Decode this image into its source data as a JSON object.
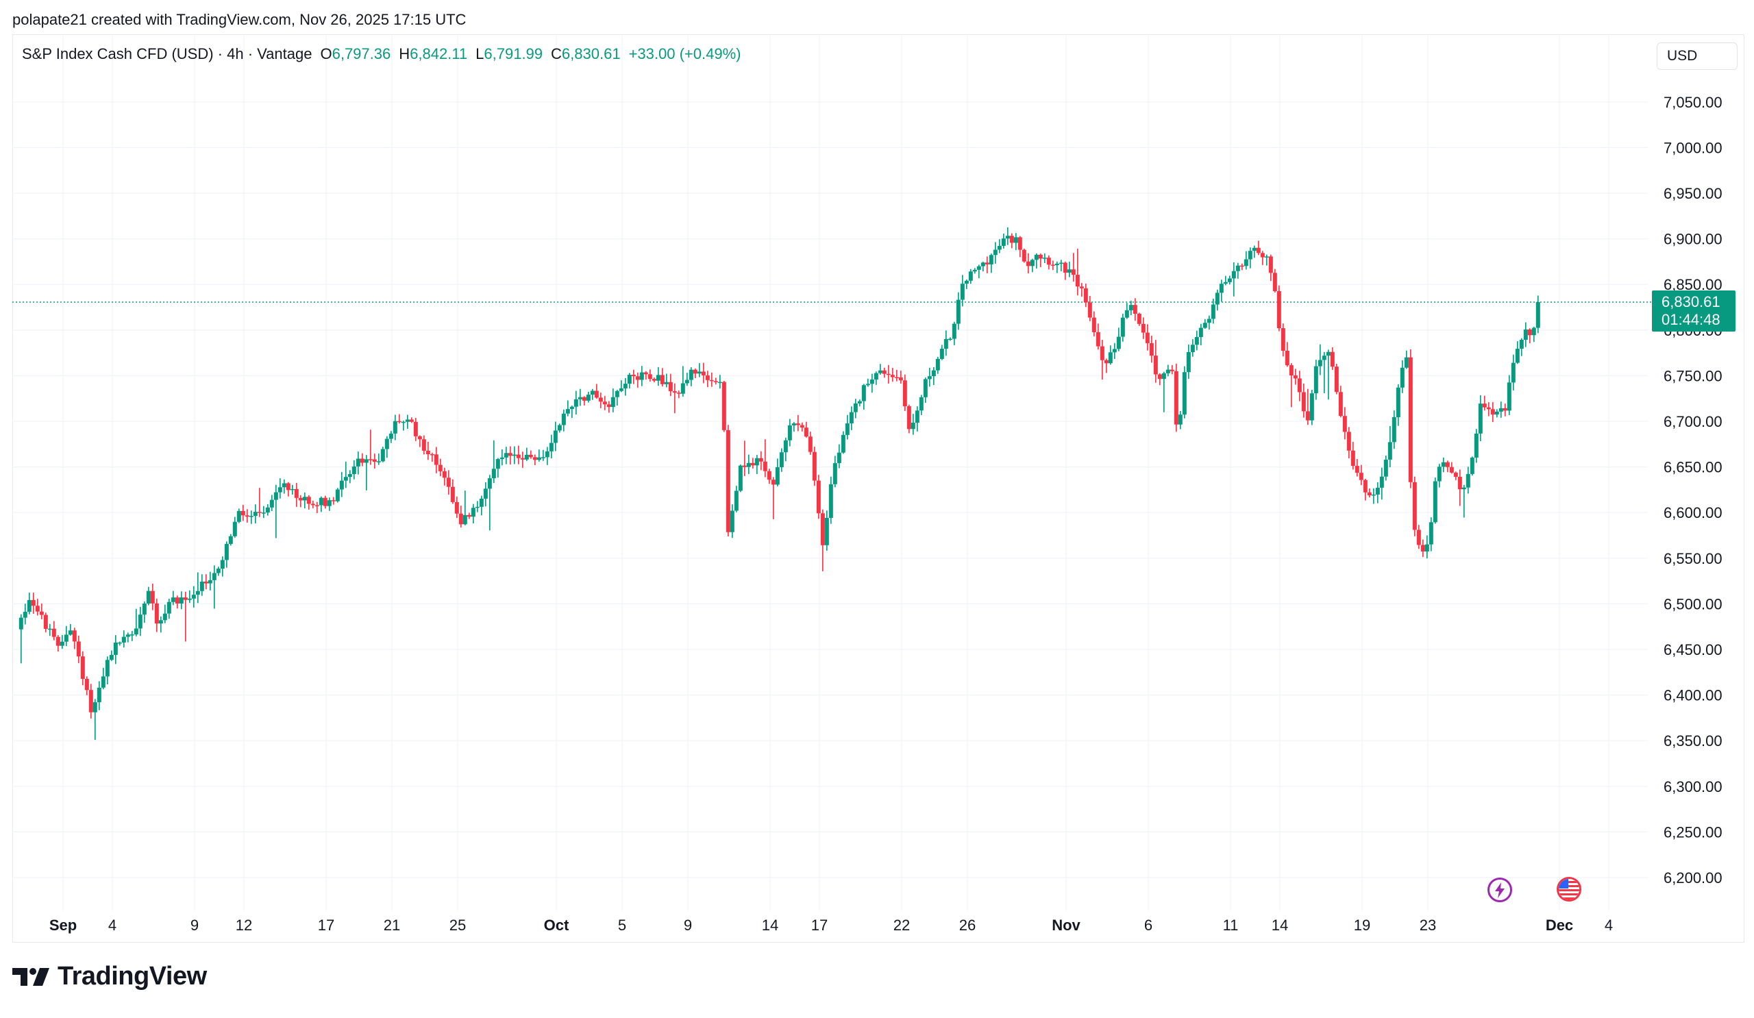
{
  "header": {
    "created_by": "polapate21 created with TradingView.com, Nov 26, 2025 17:15 UTC"
  },
  "legend": {
    "symbol": "S&P Index Cash CFD (USD) · 4h · Vantage",
    "open_label": "O",
    "open": "6,797.36",
    "high_label": "H",
    "high": "6,842.11",
    "low_label": "L",
    "low": "6,791.99",
    "close_label": "C",
    "close": "6,830.61",
    "change": "+33.00 (+0.49%)"
  },
  "currency_button": "USD",
  "price_tag": {
    "price": "6,830.61",
    "countdown": "01:44:48"
  },
  "logo": {
    "text": "TradingView",
    "icon": "tradingview-logo-icon"
  },
  "events": [
    {
      "icon": "lightning-icon",
      "color": "#9c27b0"
    },
    {
      "icon": "us-flag-icon",
      "color": "#f23645"
    }
  ],
  "colors": {
    "up": "#089981",
    "down": "#f23645",
    "grid": "#f0f3fa",
    "text": "#131722"
  },
  "chart_data": {
    "type": "candlestick",
    "title": "S&P Index Cash CFD (USD) · 4h · Vantage",
    "ylim": [
      6150,
      7090
    ],
    "y_ticks": [
      "6,200.00",
      "6,250.00",
      "6,300.00",
      "6,350.00",
      "6,400.00",
      "6,450.00",
      "6,500.00",
      "6,550.00",
      "6,600.00",
      "6,650.00",
      "6,700.00",
      "6,750.00",
      "6,800.00",
      "6,850.00",
      "6,900.00",
      "6,950.00",
      "7,000.00",
      "7,050.00"
    ],
    "y_tick_values": [
      6200,
      6250,
      6300,
      6350,
      6400,
      6450,
      6500,
      6550,
      6600,
      6650,
      6700,
      6750,
      6800,
      6850,
      6900,
      6950,
      7000,
      7050
    ],
    "x_ticks": [
      {
        "label": "Sep",
        "day": 0,
        "bold": true
      },
      {
        "label": "4",
        "day": 3,
        "bold": false
      },
      {
        "label": "9",
        "day": 8,
        "bold": false
      },
      {
        "label": "12",
        "day": 11,
        "bold": false
      },
      {
        "label": "17",
        "day": 16,
        "bold": false
      },
      {
        "label": "21",
        "day": 20,
        "bold": false
      },
      {
        "label": "25",
        "day": 24,
        "bold": false
      },
      {
        "label": "Oct",
        "day": 30,
        "bold": true
      },
      {
        "label": "5",
        "day": 34,
        "bold": false
      },
      {
        "label": "9",
        "day": 38,
        "bold": false
      },
      {
        "label": "14",
        "day": 43,
        "bold": false
      },
      {
        "label": "17",
        "day": 46,
        "bold": false
      },
      {
        "label": "22",
        "day": 51,
        "bold": false
      },
      {
        "label": "26",
        "day": 55,
        "bold": false
      },
      {
        "label": "Nov",
        "day": 61,
        "bold": true
      },
      {
        "label": "6",
        "day": 66,
        "bold": false
      },
      {
        "label": "11",
        "day": 71,
        "bold": false
      },
      {
        "label": "14",
        "day": 74,
        "bold": false
      },
      {
        "label": "19",
        "day": 79,
        "bold": false
      },
      {
        "label": "23",
        "day": 83,
        "bold": false
      },
      {
        "label": "Dec",
        "day": 91,
        "bold": true
      },
      {
        "label": "4",
        "day": 94,
        "bold": false
      }
    ],
    "current_price": 6830.61,
    "path": [
      [
        -2.8,
        6472
      ],
      [
        -2.0,
        6508
      ],
      [
        -1.5,
        6490
      ],
      [
        -0.8,
        6468
      ],
      [
        -0.3,
        6452
      ],
      [
        0.5,
        6476
      ],
      [
        1.3,
        6410
      ],
      [
        1.8,
        6380
      ],
      [
        2.5,
        6428
      ],
      [
        3.3,
        6458
      ],
      [
        4.3,
        6468
      ],
      [
        5.3,
        6518
      ],
      [
        5.8,
        6472
      ],
      [
        6.6,
        6505
      ],
      [
        7.6,
        6505
      ],
      [
        8.6,
        6522
      ],
      [
        9.6,
        6545
      ],
      [
        10.6,
        6598
      ],
      [
        11.6,
        6595
      ],
      [
        12.4,
        6602
      ],
      [
        13.4,
        6630
      ],
      [
        14.3,
        6615
      ],
      [
        15.3,
        6612
      ],
      [
        16.3,
        6612
      ],
      [
        17.1,
        6640
      ],
      [
        18.1,
        6658
      ],
      [
        19.3,
        6660
      ],
      [
        20.3,
        6702
      ],
      [
        21.1,
        6698
      ],
      [
        22.1,
        6668
      ],
      [
        23.1,
        6645
      ],
      [
        24.2,
        6590
      ],
      [
        25.2,
        6605
      ],
      [
        26.1,
        6650
      ],
      [
        27.3,
        6665
      ],
      [
        28.3,
        6660
      ],
      [
        29.2,
        6658
      ],
      [
        30.2,
        6700
      ],
      [
        31.2,
        6725
      ],
      [
        32.2,
        6730
      ],
      [
        33.2,
        6718
      ],
      [
        34.1,
        6745
      ],
      [
        35.3,
        6752
      ],
      [
        36.3,
        6748
      ],
      [
        37.3,
        6728
      ],
      [
        38.3,
        6758
      ],
      [
        39.3,
        6742
      ],
      [
        40.1,
        6748
      ],
      [
        40.4,
        6578
      ],
      [
        41.2,
        6648
      ],
      [
        42.3,
        6660
      ],
      [
        43.2,
        6628
      ],
      [
        44.1,
        6695
      ],
      [
        45.1,
        6698
      ],
      [
        45.6,
        6648
      ],
      [
        46.2,
        6560
      ],
      [
        46.8,
        6645
      ],
      [
        47.8,
        6700
      ],
      [
        49.0,
        6748
      ],
      [
        50.0,
        6755
      ],
      [
        51.0,
        6745
      ],
      [
        51.5,
        6685
      ],
      [
        52.5,
        6745
      ],
      [
        53.5,
        6778
      ],
      [
        54.3,
        6808
      ],
      [
        54.6,
        6850
      ],
      [
        55.5,
        6865
      ],
      [
        56.5,
        6882
      ],
      [
        57.3,
        6900
      ],
      [
        58.1,
        6898
      ],
      [
        58.6,
        6870
      ],
      [
        59.1,
        6885
      ],
      [
        60.1,
        6875
      ],
      [
        61.1,
        6865
      ],
      [
        62.1,
        6840
      ],
      [
        62.6,
        6808
      ],
      [
        63.4,
        6758
      ],
      [
        64.1,
        6790
      ],
      [
        64.8,
        6830
      ],
      [
        65.3,
        6810
      ],
      [
        66.1,
        6782
      ],
      [
        66.6,
        6742
      ],
      [
        67.5,
        6760
      ],
      [
        67.8,
        6660
      ],
      [
        68.1,
        6745
      ],
      [
        68.6,
        6782
      ],
      [
        69.6,
        6810
      ],
      [
        70.5,
        6850
      ],
      [
        71.5,
        6870
      ],
      [
        72.5,
        6888
      ],
      [
        73.2,
        6882
      ],
      [
        73.7,
        6840
      ],
      [
        74.3,
        6760
      ],
      [
        75.1,
        6748
      ],
      [
        75.6,
        6692
      ],
      [
        76.3,
        6770
      ],
      [
        77.1,
        6775
      ],
      [
        77.6,
        6718
      ],
      [
        78.3,
        6660
      ],
      [
        79.1,
        6625
      ],
      [
        79.8,
        6615
      ],
      [
        80.6,
        6668
      ],
      [
        81.3,
        6748
      ],
      [
        81.8,
        6778
      ],
      [
        82.0,
        6590
      ],
      [
        82.6,
        6550
      ],
      [
        83.1,
        6578
      ],
      [
        83.5,
        6642
      ],
      [
        84.1,
        6655
      ],
      [
        84.6,
        6645
      ],
      [
        85.1,
        6620
      ],
      [
        85.6,
        6645
      ],
      [
        86.2,
        6715
      ],
      [
        87.2,
        6710
      ],
      [
        87.7,
        6712
      ],
      [
        88.2,
        6765
      ],
      [
        89.0,
        6798
      ],
      [
        89.4,
        6800
      ],
      [
        89.7,
        6812
      ],
      [
        89.8,
        6830.61
      ]
    ]
  }
}
